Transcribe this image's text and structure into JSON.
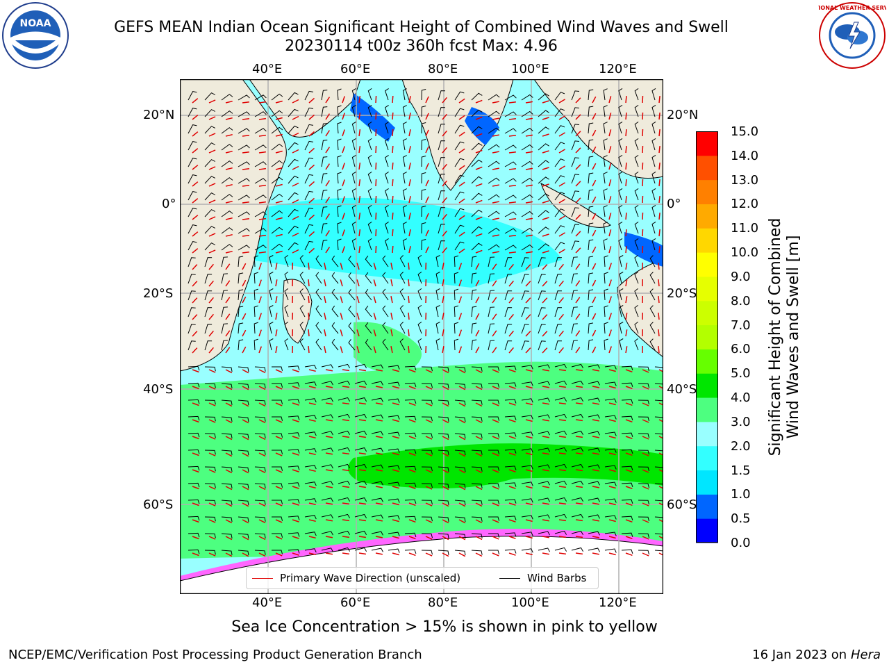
{
  "title": {
    "line1": "GEFS MEAN Indian Ocean Significant Height of Combined Wind Waves and Swell",
    "line2": "20230114 t00z 360h fcst   Max: 4.96"
  },
  "logos": {
    "left": {
      "icon": "noaa-logo",
      "text": "NOAA"
    },
    "right": {
      "icon": "nws-logo",
      "text": "NATIONAL WEATHER SERVICE"
    }
  },
  "map": {
    "lon_labels": [
      "40°E",
      "60°E",
      "80°E",
      "100°E",
      "120°E"
    ],
    "lat_labels": [
      "20°N",
      "0°",
      "20°S",
      "40°S",
      "60°S"
    ],
    "colors": {
      "land": "#efebdc",
      "grid": "#b0b0b0",
      "wave_arrow": "#e00000",
      "wind_barb": "#000000",
      "ice": "#ff66ff",
      "ice_shelf": "#ffffff"
    }
  },
  "legend": {
    "wave": "Primary Wave Direction (unscaled)",
    "wind": "Wind Barbs"
  },
  "colorbar": {
    "title_line1": "Significant Height of Combined",
    "title_line2": "Wind Waves and Swell [m]",
    "levels": [
      "0.0",
      "0.5",
      "1.0",
      "1.5",
      "2.0",
      "3.0",
      "4.0",
      "5.0",
      "6.0",
      "7.0",
      "8.0",
      "9.0",
      "10.0",
      "11.0",
      "12.0",
      "13.0",
      "14.0",
      "15.0"
    ],
    "colors": [
      "#0000ff",
      "#0066ff",
      "#00e6ff",
      "#33ffff",
      "#99ffff",
      "#4dff80",
      "#00e600",
      "#66ff00",
      "#b3ff00",
      "#ccff00",
      "#e6ff00",
      "#ffff00",
      "#ffd700",
      "#ffaa00",
      "#ff8000",
      "#ff5000",
      "#ff0000"
    ]
  },
  "notes": {
    "ice": "Sea Ice Concentration > 15% is shown in pink to yellow",
    "footer_left": "NCEP/EMC/Verification Post Processing Product Generation Branch",
    "footer_date": "16 Jan 2023 on ",
    "footer_host": "Hera"
  }
}
